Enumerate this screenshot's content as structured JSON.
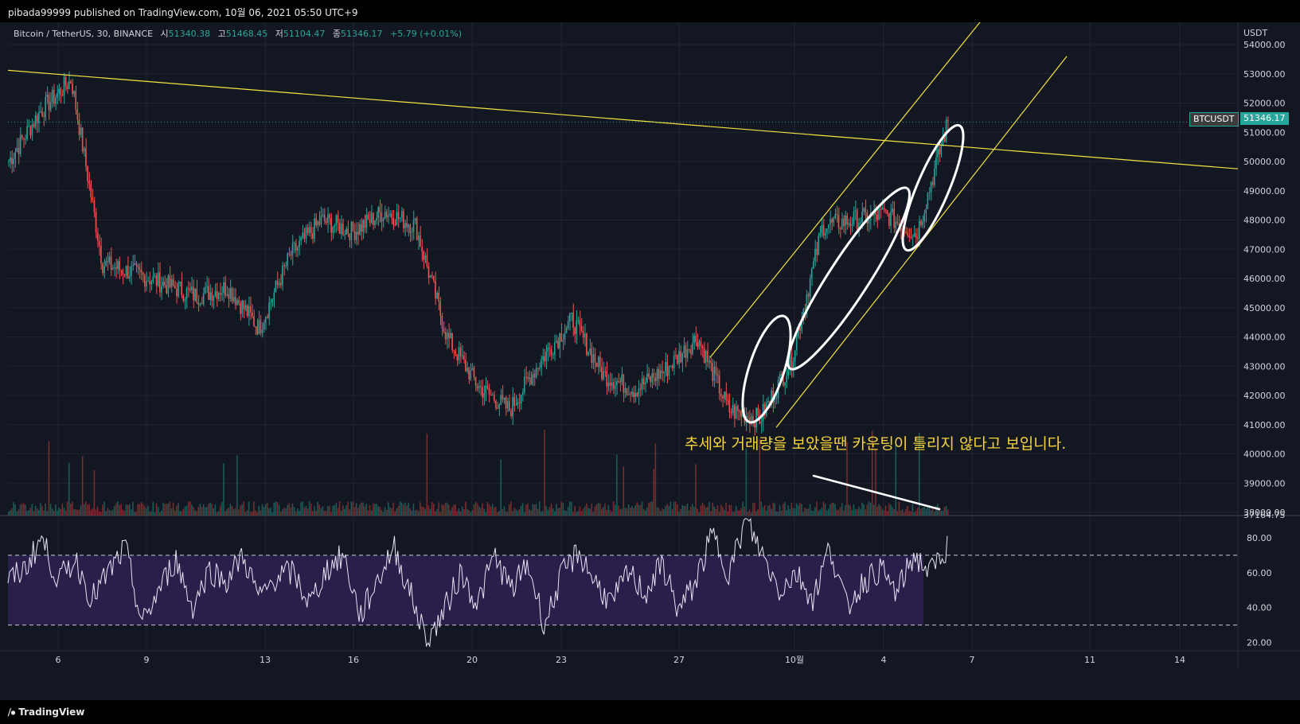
{
  "header": {
    "published": "pibada99999 published on TradingView.com, 10월 06, 2021 05:50 UTC+9"
  },
  "legend": {
    "symbol": "Bitcoin / TetherUS, 30, BINANCE",
    "open_label": "시",
    "open": "51340.38",
    "high_label": "고",
    "high": "51468.45",
    "low_label": "저",
    "low": "51104.47",
    "close_label": "종",
    "close": "51346.17",
    "change": "+5.79 (+0.01%)"
  },
  "price_axis": {
    "currency": "USDT",
    "ticks": [
      "54000.00",
      "53000.00",
      "52000.00",
      "51000.00",
      "50000.00",
      "49000.00",
      "48000.00",
      "47000.00",
      "46000.00",
      "45000.00",
      "44000.00",
      "43000.00",
      "42000.00",
      "41000.00",
      "40000.00",
      "39000.00",
      "38000.00"
    ],
    "symbol_tag": "BTCUSDT",
    "last_price": "51346.17",
    "partial_value": "37164.75"
  },
  "rsi_axis": {
    "ticks": [
      "80.00",
      "60.00",
      "40.00",
      "20.00"
    ]
  },
  "time_axis": {
    "ticks": [
      "6",
      "9",
      "13",
      "16",
      "20",
      "23",
      "27",
      "10월",
      "4",
      "7",
      "11",
      "14"
    ]
  },
  "annotation": {
    "text": "추세와 거래량을 보았을땐 카운팅이 틀리지 않다고 보입니다."
  },
  "footer": {
    "brand": "TradingView"
  },
  "colors": {
    "up": "#26a69a",
    "down": "#ef5350",
    "trendline": "#f5e342",
    "rsi_line": "#e8e4f5",
    "rsi_band": "#2a1e4a",
    "background": "#131722"
  },
  "chart_data": {
    "type": "candlestick",
    "series": [
      {
        "name": "BTCUSDT"
      }
    ],
    "ylim": [
      37500,
      54500
    ],
    "close_path": [
      [
        "Sep 5",
        50000
      ],
      [
        "Sep 6",
        51700
      ],
      [
        "Sep 7",
        52800
      ],
      [
        "Sep 7",
        46500
      ],
      [
        "Sep 8",
        46200
      ],
      [
        "Sep 10",
        45800
      ],
      [
        "Sep 12",
        45400
      ],
      [
        "Sep 13",
        45700
      ],
      [
        "Sep 14",
        44300
      ],
      [
        "Sep 15",
        46800
      ],
      [
        "Sep 16",
        48000
      ],
      [
        "Sep 17",
        47600
      ],
      [
        "Sep 18",
        48300
      ],
      [
        "Sep 19",
        47800
      ],
      [
        "Sep 20",
        44000
      ],
      [
        "Sep 21",
        42300
      ],
      [
        "Sep 22",
        41500
      ],
      [
        "Sep 23",
        43200
      ],
      [
        "Sep 24",
        44600
      ],
      [
        "Sep 25",
        42700
      ],
      [
        "Sep 26",
        42200
      ],
      [
        "Sep 27",
        42900
      ],
      [
        "Sep 28",
        44000
      ],
      [
        "Sep 29",
        41500
      ],
      [
        "Sep 30",
        41200
      ],
      [
        "Oct 1",
        43200
      ],
      [
        "Oct 2",
        47800
      ],
      [
        "Oct 3",
        48000
      ],
      [
        "Oct 4",
        48200
      ],
      [
        "Oct 5",
        47500
      ],
      [
        "Oct 6",
        51346
      ]
    ],
    "rsi_ylim": [
      15,
      95
    ],
    "rsi_band": [
      30,
      70
    ],
    "rsi_sample": [
      55,
      62,
      80,
      55,
      68,
      45,
      60,
      74,
      30,
      50,
      68,
      40,
      62,
      55,
      70,
      45,
      58,
      60,
      42,
      62,
      70,
      35,
      55,
      75,
      48,
      20,
      38,
      60,
      42,
      70,
      50,
      65,
      30,
      58,
      72,
      55,
      42,
      60,
      48,
      65,
      38,
      55,
      82,
      60,
      90,
      70,
      50,
      60,
      45,
      75,
      40,
      55,
      62,
      48,
      70,
      60,
      75
    ]
  }
}
